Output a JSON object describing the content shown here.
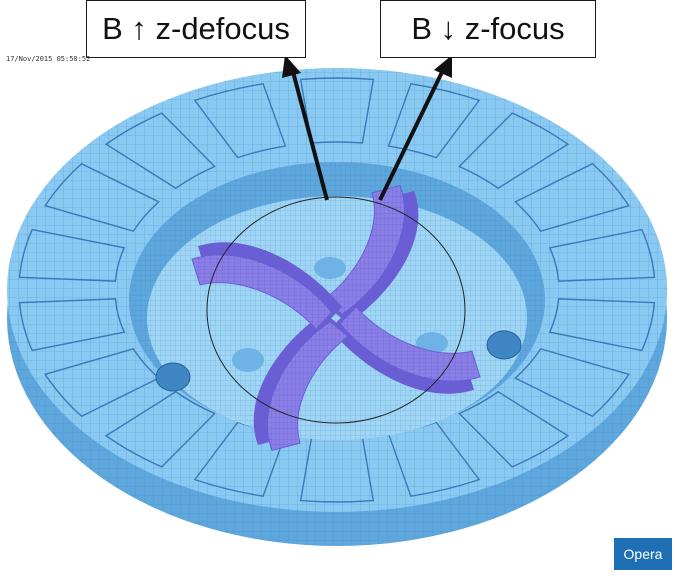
{
  "labels": {
    "defocus": "B ↑ z-defocus",
    "focus": "B ↓ z-focus"
  },
  "timestamp": "17/Nov/2015 05:50:52",
  "badge": "Opera",
  "colors": {
    "pole": "#89c9f2",
    "pole_face": "#5ea7dd",
    "mesh_line": "#3a78b8",
    "spiral": "#8a7fe6",
    "spiral_dark": "#6a5ed4",
    "arrow": "#111111",
    "badge": "#1f6fb5"
  }
}
